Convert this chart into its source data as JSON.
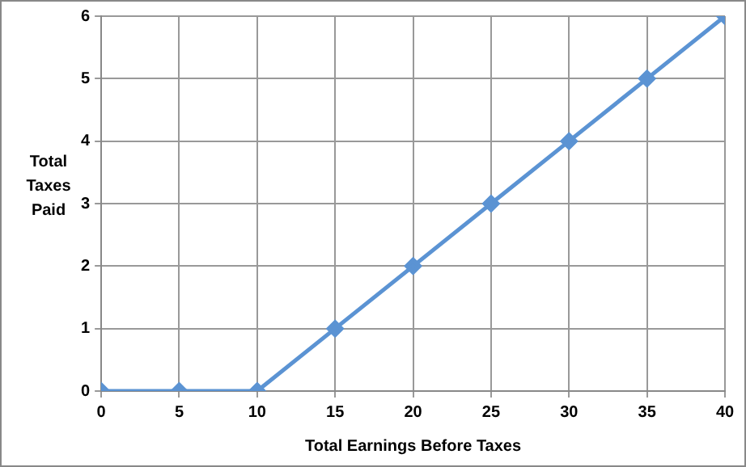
{
  "chart_data": {
    "type": "line",
    "xlabel": "Total Earnings Before Taxes",
    "ylabel": "Total Taxes Paid",
    "x": [
      0,
      5,
      10,
      15,
      20,
      25,
      30,
      35,
      40
    ],
    "series": [
      {
        "color": "#5b93d3",
        "values": [
          0,
          0,
          0,
          1,
          2,
          3,
          4,
          5,
          6
        ]
      }
    ],
    "xlim": [
      0,
      40
    ],
    "xticks": [
      0,
      5,
      10,
      15,
      20,
      25,
      30,
      35,
      40
    ],
    "ylim": [
      0,
      6
    ],
    "yticks": [
      0,
      1,
      2,
      3,
      4,
      5,
      6
    ],
    "grid": true,
    "legend": false,
    "marker": "diamond",
    "line_style": "solid"
  }
}
